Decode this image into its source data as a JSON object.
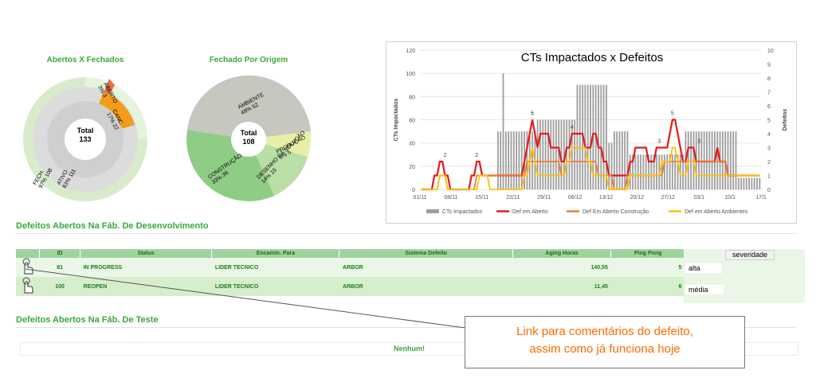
{
  "donut1": {
    "title": "Abertos X Fechados",
    "center_label": "Total",
    "center_value": "133",
    "labels": {
      "aberto": "ABERTO\n3% 3",
      "canc": "CANC.\n17% 22",
      "ativo": "ATIVO\n83% 111",
      "fech": "FECH.\n97% 108"
    }
  },
  "donut2": {
    "title": "Fechado Por Origem",
    "center_label": "Total",
    "center_value": "108",
    "labels": {
      "ambiente": "AMBIENTE\n48% 52",
      "producao": "PRODUÇÃO\n5% 5",
      "desenho": "DESENHO DA SOLUÇÃO\n14% 15",
      "construcao": "CONSTRUÇÃO\n33% 36"
    }
  },
  "chart_data": {
    "type": "line",
    "title": "CTs Impactados  x Defeitos",
    "ylabel": "CTs Impactados",
    "y2label": "Defeitos",
    "ylim": [
      0,
      120
    ],
    "y2lim": [
      0,
      10
    ],
    "yticks": [
      "0",
      "20",
      "40",
      "60",
      "80",
      "100",
      "120"
    ],
    "y2ticks": [
      "0",
      "1",
      "2",
      "3",
      "4",
      "5",
      "6",
      "7",
      "8",
      "9",
      "10"
    ],
    "xticks": [
      "01/11",
      "08/11",
      "15/11",
      "22/11",
      "29/11",
      "06/12",
      "13/12",
      "20/12",
      "27/12",
      "03/1",
      "10/1",
      "17/1"
    ],
    "annotations": [
      "2",
      "2",
      "5",
      "5",
      "4",
      "3",
      "5",
      "3"
    ],
    "legend": [
      "CTs Impactados",
      "Def em Aberto",
      "Def Em Aberto Construção",
      "Def em Aberto Ambientes"
    ],
    "colors": [
      "#9e9e9e",
      "#e41a1c",
      "#ed7d31",
      "#ffc000"
    ],
    "legend_position": "bottom",
    "series": [
      {
        "name": "CTs Impactados",
        "values": [
          0,
          0,
          0,
          0,
          0,
          0,
          0,
          0,
          0,
          0,
          0,
          0,
          0,
          0,
          0,
          0,
          0,
          0,
          0,
          0,
          0,
          0,
          0,
          0,
          0,
          0,
          0,
          0,
          0,
          50,
          50,
          100,
          50,
          50,
          50,
          50,
          50,
          50,
          50,
          50,
          50,
          50,
          50,
          50,
          60,
          60,
          60,
          60,
          60,
          60,
          60,
          60,
          60,
          60,
          60,
          60,
          60,
          60,
          60,
          90,
          90,
          90,
          90,
          90,
          90,
          90,
          90,
          90,
          90,
          90,
          90,
          40,
          40,
          50,
          50,
          50,
          50,
          50,
          50,
          30,
          30,
          30,
          30,
          30,
          30,
          30,
          30,
          30,
          30,
          30,
          30,
          30,
          30,
          30,
          30,
          30,
          30,
          30,
          30,
          30,
          50,
          50,
          50,
          50,
          50,
          50,
          50,
          50,
          50,
          50,
          50,
          50,
          50,
          50,
          50,
          50,
          50,
          50,
          50,
          50,
          10,
          10,
          10,
          10,
          10,
          10,
          10,
          10,
          10
        ]
      },
      {
        "name": "Def em Aberto",
        "values": [
          0,
          0,
          0,
          0,
          0,
          1,
          1,
          2,
          2,
          1,
          1,
          0,
          0,
          0,
          0,
          0,
          0,
          0,
          0,
          1,
          1,
          2,
          2,
          1,
          1,
          1,
          1,
          1,
          1,
          1,
          1,
          1,
          1,
          1,
          1,
          1,
          1,
          1,
          1,
          2,
          3,
          4,
          5,
          4,
          3,
          4,
          4,
          4,
          4,
          3,
          3,
          3,
          3,
          2,
          2,
          3,
          3,
          4,
          4,
          4,
          4,
          4,
          3,
          3,
          3,
          4,
          4,
          3,
          3,
          2,
          2,
          1,
          1,
          1,
          1,
          1,
          1,
          1,
          1,
          2,
          2,
          3,
          3,
          3,
          3,
          3,
          2,
          2,
          2,
          3,
          3,
          3,
          3,
          3,
          4,
          5,
          5,
          4,
          3,
          2,
          2,
          3,
          3,
          3,
          2,
          2,
          2,
          2,
          2,
          2,
          2,
          2,
          3,
          2,
          2,
          2,
          1,
          1,
          1,
          1,
          1,
          1,
          1,
          1,
          1,
          1,
          1,
          1,
          1
        ]
      },
      {
        "name": "Def Em Aberto Construção",
        "values": [
          0,
          0,
          0,
          0,
          0,
          0,
          0,
          1,
          1,
          1,
          0,
          0,
          0,
          0,
          0,
          0,
          0,
          0,
          0,
          0,
          0,
          1,
          1,
          1,
          1,
          1,
          1,
          1,
          1,
          1,
          1,
          1,
          1,
          1,
          1,
          1,
          1,
          1,
          1,
          1,
          2,
          2,
          2,
          2,
          2,
          2,
          2,
          2,
          2,
          2,
          2,
          2,
          2,
          1,
          1,
          2,
          2,
          2,
          2,
          2,
          2,
          2,
          2,
          2,
          2,
          2,
          2,
          1,
          1,
          1,
          1,
          1,
          1,
          0,
          0,
          0,
          0,
          0,
          1,
          1,
          1,
          1,
          1,
          1,
          1,
          1,
          1,
          1,
          1,
          1,
          1,
          1,
          2,
          2,
          2,
          2,
          2,
          2,
          2,
          2,
          2,
          2,
          2,
          2,
          2,
          2,
          2,
          2,
          2,
          2,
          2,
          2,
          2,
          2,
          2,
          2,
          1,
          1,
          1,
          1,
          1,
          1,
          1,
          1,
          1,
          1,
          1,
          1,
          1
        ]
      },
      {
        "name": "Def em Aberto Ambientes",
        "values": [
          0,
          0,
          0,
          0,
          0,
          0,
          0,
          1,
          1,
          1,
          0,
          0,
          0,
          0,
          0,
          0,
          0,
          0,
          0,
          0,
          0,
          0,
          1,
          1,
          1,
          1,
          0,
          0,
          0,
          0,
          0,
          0,
          0,
          0,
          0,
          0,
          0,
          0,
          0,
          1,
          1,
          2,
          3,
          2,
          1,
          1,
          1,
          1,
          1,
          1,
          1,
          1,
          1,
          1,
          1,
          2,
          2,
          3,
          3,
          3,
          3,
          3,
          3,
          2,
          2,
          1,
          1,
          1,
          1,
          1,
          1,
          0,
          0,
          0,
          0,
          0,
          0,
          0,
          0,
          1,
          1,
          1,
          1,
          1,
          1,
          1,
          1,
          1,
          1,
          1,
          1,
          2,
          2,
          2,
          2,
          3,
          3,
          2,
          1,
          1,
          1,
          2,
          2,
          2,
          1,
          1,
          1,
          1,
          1,
          1,
          1,
          1,
          1,
          1,
          1,
          1,
          1,
          1,
          1,
          1,
          1,
          1,
          1,
          1,
          1,
          1,
          1,
          1,
          1
        ]
      }
    ]
  },
  "section1": {
    "title": "Defeitos Abertos Na Fáb. De Desenvolvimento"
  },
  "table": {
    "headers": [
      "ID",
      "Status",
      "Encamin. Para",
      "Sistema Defeito",
      "Aging Horas",
      "Ping Pong"
    ],
    "severity_header": "severidade",
    "rows": [
      {
        "id": "81",
        "status": "IN PROGRESS",
        "encamin": "LIDER TECNICO",
        "sistema": "ARBOR",
        "aging": "140,55",
        "pingpong": "5",
        "severidade": "alta"
      },
      {
        "id": "100",
        "status": "REOPEN",
        "encamin": "LIDER TECNICO",
        "sistema": "ARBOR",
        "aging": "11,45",
        "pingpong": "6",
        "severidade": "média"
      }
    ]
  },
  "section2": {
    "title": "Defeitos Abertos Na Fáb. De Teste",
    "empty_text": "Nenhum!"
  },
  "callout": {
    "line1": "Link para comentários do defeito,",
    "line2": "assim como já funciona hoje"
  }
}
